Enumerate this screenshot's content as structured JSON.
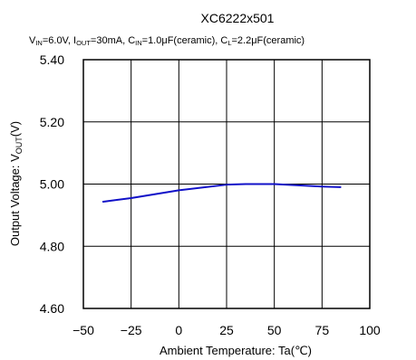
{
  "chart_data": {
    "type": "line",
    "title": "XC6222x501",
    "conditions": [
      {
        "main": "V",
        "sub": "IN",
        "rest": "=6.0V, "
      },
      {
        "main": "I",
        "sub": "OUT",
        "rest": "=30mA, "
      },
      {
        "main": "C",
        "sub": "IN",
        "rest": "=1.0μF(ceramic), "
      },
      {
        "main": "C",
        "sub": "L",
        "rest": "=2.2μF(ceramic)"
      }
    ],
    "xlabel": "Ambient Temperature: Ta(℃)",
    "ylabel": {
      "main": "Output Voltage: V",
      "sub": "OUT",
      "rest": "(V)"
    },
    "xlim": [
      -50,
      100
    ],
    "ylim": [
      4.6,
      5.4
    ],
    "xticks": [
      -50,
      -25,
      0,
      25,
      50,
      75,
      100
    ],
    "xtick_labels": [
      "−50",
      "−25",
      "0",
      "25",
      "50",
      "75",
      "100"
    ],
    "yticks": [
      4.6,
      4.8,
      5.0,
      5.2,
      5.4
    ],
    "ytick_labels": [
      "4.60",
      "4.80",
      "5.00",
      "5.20",
      "5.40"
    ],
    "grid": true,
    "series": [
      {
        "color": "#1010c8",
        "x": [
          -40,
          -25,
          0,
          25,
          35,
          50,
          75,
          85
        ],
        "y": [
          4.943,
          4.955,
          4.98,
          4.998,
          5.0,
          5.0,
          4.992,
          4.99
        ]
      }
    ]
  }
}
